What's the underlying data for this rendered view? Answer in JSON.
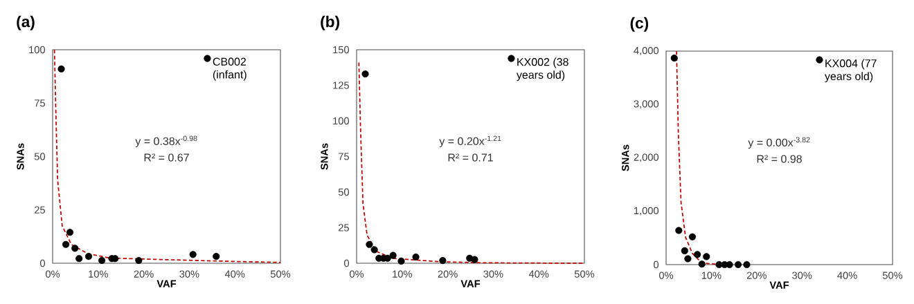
{
  "chart_data": [
    {
      "type": "scatter",
      "title": "(a)",
      "xlabel": "VAF",
      "ylabel": "SNAs",
      "xlim": [
        0,
        50
      ],
      "ylim": [
        0,
        100
      ],
      "xticks": [
        {
          "value": 0,
          "label": "0%"
        },
        {
          "value": 10,
          "label": "10%"
        },
        {
          "value": 20,
          "label": "20%"
        },
        {
          "value": 30,
          "label": "30%"
        },
        {
          "value": 40,
          "label": "40%"
        },
        {
          "value": 50,
          "label": "50%"
        }
      ],
      "yticks": [
        0,
        25,
        50,
        75,
        100
      ],
      "legend": "top right",
      "annotations": [
        "y = 0.38x$^{-0.98}$",
        "R² = 0.67"
      ],
      "series": [
        {
          "name": "CB002 (infant)",
          "marker": "circle",
          "color": "#000000",
          "x": [
            1.9,
            3.8,
            2.9,
            4.9,
            5.8,
            7.9,
            10.8,
            13.0,
            13.7,
            18.9,
            30.8,
            35.9
          ],
          "values": [
            91,
            14.5,
            8.8,
            7.0,
            2.2,
            3.2,
            1.3,
            2.2,
            2.2,
            1.3,
            4.1,
            3.2
          ]
        },
        {
          "type": "line",
          "marker": "none",
          "line_style": "dashed",
          "color": "#c00000",
          "x": [
            0.4,
            0.7,
            1.1,
            2.1,
            4.1,
            7.7,
            12.7,
            22.8,
            40.5,
            50
          ],
          "values": [
            100,
            71,
            39,
            17.5,
            8.8,
            4.5,
            2.4,
            1.8,
            0.8,
            0.4
          ]
        }
      ]
    },
    {
      "type": "scatter",
      "title": "(b)",
      "xlabel": "VAF",
      "ylabel": "SNAs",
      "xlim": [
        0,
        50
      ],
      "ylim": [
        0,
        150
      ],
      "xticks": [
        {
          "value": 0,
          "label": "0%"
        },
        {
          "value": 10,
          "label": "10%"
        },
        {
          "value": 20,
          "label": "20%"
        },
        {
          "value": 30,
          "label": "30%"
        },
        {
          "value": 40,
          "label": "40%"
        },
        {
          "value": 50,
          "label": "50%"
        }
      ],
      "yticks": [
        0,
        25,
        50,
        75,
        100,
        125,
        150
      ],
      "legend": "top right",
      "annotations": [
        "y = 0.20x$^{-1.21}$",
        "R² = 0.71"
      ],
      "series": [
        {
          "name": "KX002 (38 years old)",
          "marker": "circle",
          "color": "#000000",
          "x": [
            1.9,
            2.8,
            3.9,
            4.9,
            5.9,
            6.8,
            8.0,
            9.8,
            13.0,
            18.9,
            24.8,
            25.9
          ],
          "values": [
            133,
            13.2,
            9.5,
            3.5,
            3.5,
            3.5,
            5.5,
            1.5,
            4.4,
            1.9,
            3.5,
            2.6
          ]
        },
        {
          "type": "line",
          "marker": "none",
          "line_style": "dashed",
          "color": "#c00000",
          "x": [
            0.5,
            0.9,
            1.4,
            2.3,
            4.3,
            7.8,
            17.9,
            28,
            50
          ],
          "values": [
            141,
            90.6,
            42,
            19.7,
            8.4,
            3.5,
            1.1,
            0.3,
            0
          ]
        }
      ]
    },
    {
      "type": "scatter",
      "title": "(c)",
      "xlabel": "VAF",
      "ylabel": "SNAs",
      "xlim": [
        0,
        50
      ],
      "ylim": [
        0,
        4000
      ],
      "xticks": [
        {
          "value": 0,
          "label": "0%"
        },
        {
          "value": 10,
          "label": "10%"
        },
        {
          "value": 20,
          "label": "20%"
        },
        {
          "value": 30,
          "label": "30%"
        },
        {
          "value": 40,
          "label": "40%"
        },
        {
          "value": 50,
          "label": "50%"
        }
      ],
      "yticks": [
        0,
        {
          "value": 1000,
          "label": "1,000"
        },
        {
          "value": 2000,
          "label": "2,000"
        },
        {
          "value": 3000,
          "label": "3,000"
        },
        {
          "value": 4000,
          "label": "4,000"
        }
      ],
      "legend": "top right",
      "annotations": [
        "y = 0.00x$^{-3.82}$",
        "R² = 0.98"
      ],
      "series": [
        {
          "name": "KX004 (77 years old)",
          "marker": "circle",
          "color": "#000000",
          "x": [
            1.8,
            2.8,
            4.1,
            5.8,
            4.8,
            6.9,
            8.9,
            7.9,
            11.7,
            12.9,
            14.0,
            15.9,
            17.8
          ],
          "values": [
            3870,
            640,
            260,
            520,
            110,
            190,
            150,
            10,
            0,
            0,
            0,
            0,
            0
          ]
        },
        {
          "type": "line",
          "marker": "none",
          "line_style": "dashed",
          "color": "#c00000",
          "x": [
            2.3,
            2.7,
            3.3,
            4.3,
            5.8,
            7.9,
            12
          ],
          "values": [
            4000,
            2450,
            1160,
            510,
            210,
            30,
            0
          ]
        }
      ]
    }
  ]
}
